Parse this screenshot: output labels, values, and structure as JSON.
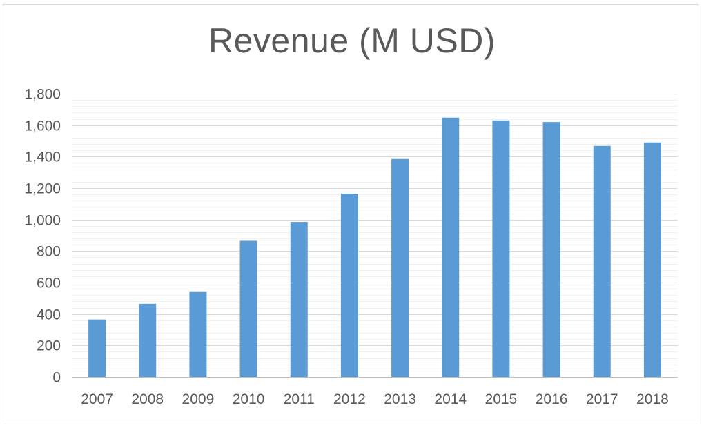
{
  "chart_data": {
    "type": "bar",
    "title": "Revenue (M USD)",
    "xlabel": "",
    "ylabel": "",
    "categories": [
      "2007",
      "2008",
      "2009",
      "2010",
      "2011",
      "2012",
      "2013",
      "2014",
      "2015",
      "2016",
      "2017",
      "2018"
    ],
    "values": [
      365,
      465,
      540,
      865,
      985,
      1165,
      1385,
      1648,
      1630,
      1620,
      1468,
      1490
    ],
    "ylim": [
      0,
      1800
    ],
    "yticks": [
      "0",
      "200",
      "400",
      "600",
      "800",
      "1,000",
      "1,200",
      "1,400",
      "1,600",
      "1,800"
    ],
    "bar_color": "#5b9bd5",
    "grid": "major and minor horizontal",
    "legend": "none"
  }
}
